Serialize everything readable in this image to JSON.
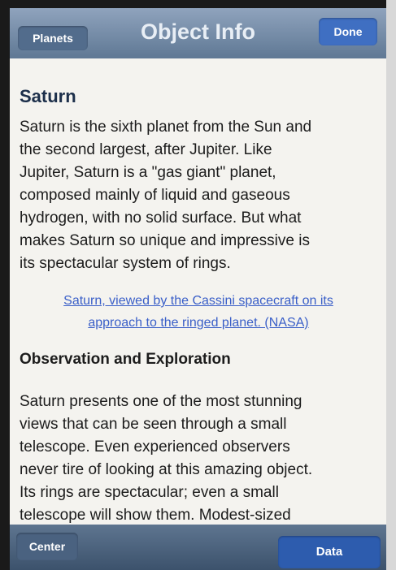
{
  "nav": {
    "back": "Planets",
    "title": "Object Info",
    "done": "Done"
  },
  "content": {
    "heading": "Saturn",
    "paragraph_1": [
      "Saturn is the sixth planet from the Sun and",
      "the second largest, after Jupiter. Like",
      "Jupiter, Saturn is a \"gas giant\" planet,",
      "composed mainly of liquid and gaseous",
      "hydrogen, with no solid surface. But what",
      "makes Saturn so unique and impressive is",
      "its spectacular system of rings."
    ],
    "link": [
      "Saturn, viewed by the Cassini spacecraft on its",
      "approach to the ringed planet. (NASA)"
    ],
    "section_heading": "Observation and Exploration",
    "paragraph_2": [
      "Saturn presents one of the most stunning",
      "views that can be seen through a small",
      "telescope. Even experienced observers",
      "never tire of looking at this amazing object.",
      "Its rings are spectacular; even a small",
      "telescope will show them. Modest-sized"
    ]
  },
  "toolbar": {
    "left": "Center",
    "right": "Data"
  }
}
